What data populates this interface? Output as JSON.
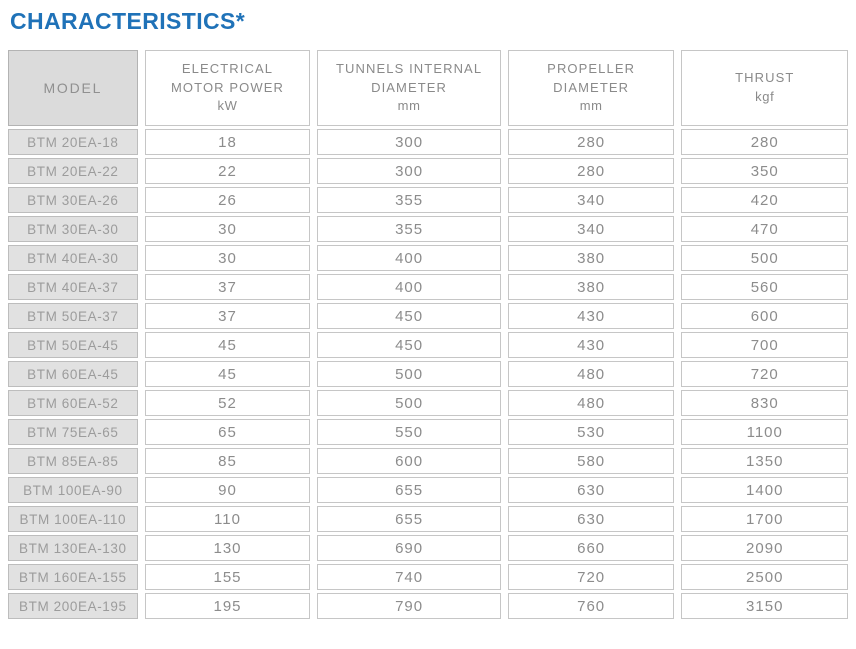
{
  "title": "CHARACTERISTICS*",
  "colors": {
    "title_blue": "#1F72B8",
    "model_header_bg": "#DBDBDB",
    "model_cell_bg": "#E1E1E1",
    "cell_border": "#C6C6C6",
    "text_gray": "#8C8C8C"
  },
  "table": {
    "columns": [
      {
        "id": "model",
        "lines": [
          "MODEL"
        ],
        "unit": ""
      },
      {
        "id": "electrical-motor-power",
        "lines": [
          "ELECTRICAL",
          "MOTOR POWER"
        ],
        "unit": "kW"
      },
      {
        "id": "tunnels-internal-diameter",
        "lines": [
          "TUNNELS INTERNAL",
          "DIAMETER"
        ],
        "unit": "mm"
      },
      {
        "id": "propeller-diameter",
        "lines": [
          "PROPELLER",
          "DIAMETER"
        ],
        "unit": "mm"
      },
      {
        "id": "thrust",
        "lines": [
          "THRUST"
        ],
        "unit": "kgf"
      }
    ],
    "rows": [
      [
        "BTM 20EA-18",
        "18",
        "300",
        "280",
        "280"
      ],
      [
        "BTM 20EA-22",
        "22",
        "300",
        "280",
        "350"
      ],
      [
        "BTM 30EA-26",
        "26",
        "355",
        "340",
        "420"
      ],
      [
        "BTM 30EA-30",
        "30",
        "355",
        "340",
        "470"
      ],
      [
        "BTM 40EA-30",
        "30",
        "400",
        "380",
        "500"
      ],
      [
        "BTM 40EA-37",
        "37",
        "400",
        "380",
        "560"
      ],
      [
        "BTM 50EA-37",
        "37",
        "450",
        "430",
        "600"
      ],
      [
        "BTM 50EA-45",
        "45",
        "450",
        "430",
        "700"
      ],
      [
        "BTM 60EA-45",
        "45",
        "500",
        "480",
        "720"
      ],
      [
        "BTM 60EA-52",
        "52",
        "500",
        "480",
        "830"
      ],
      [
        "BTM 75EA-65",
        "65",
        "550",
        "530",
        "1100"
      ],
      [
        "BTM 85EA-85",
        "85",
        "600",
        "580",
        "1350"
      ],
      [
        "BTM 100EA-90",
        "90",
        "655",
        "630",
        "1400"
      ],
      [
        "BTM 100EA-110",
        "110",
        "655",
        "630",
        "1700"
      ],
      [
        "BTM 130EA-130",
        "130",
        "690",
        "660",
        "2090"
      ],
      [
        "BTM 160EA-155",
        "155",
        "740",
        "720",
        "2500"
      ],
      [
        "BTM 200EA-195",
        "195",
        "790",
        "760",
        "3150"
      ]
    ]
  }
}
